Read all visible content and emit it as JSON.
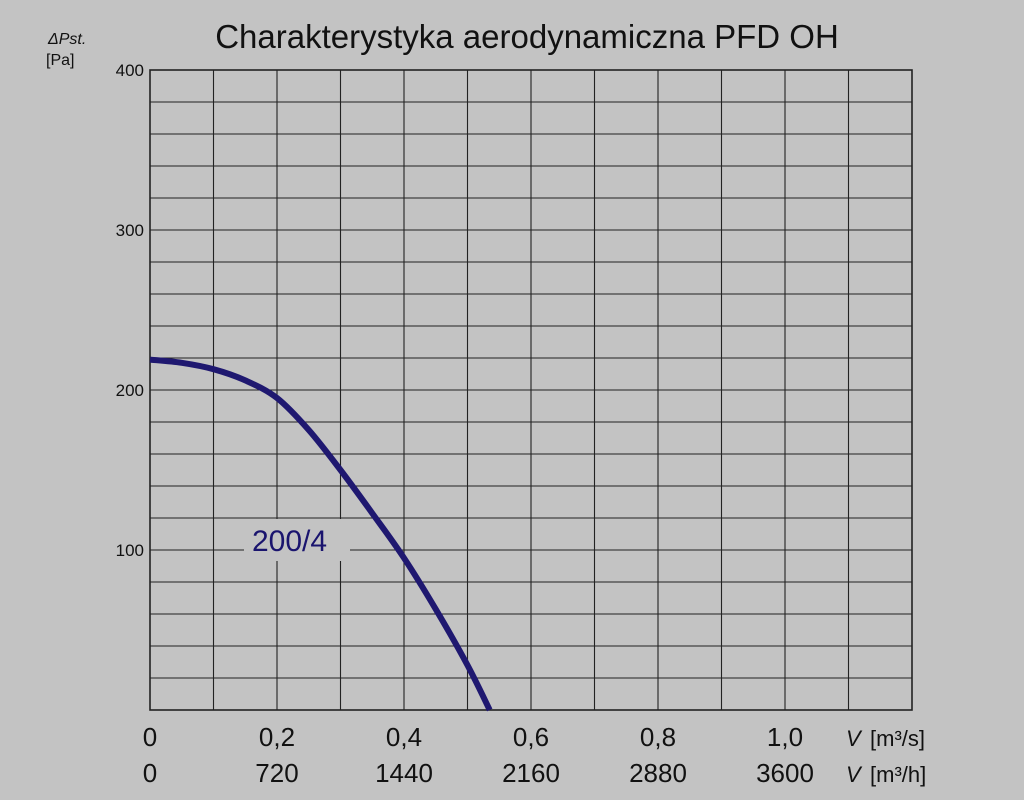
{
  "chart_data": {
    "type": "line",
    "title": "Charakterystyka aerodynamiczna PFD OH",
    "ylabel": {
      "symbol": "ΔPst.",
      "unit": "[Pa]"
    },
    "ylim": [
      0,
      400
    ],
    "yticks": [
      "100",
      "200",
      "300",
      "400"
    ],
    "xlim": [
      0,
      1.2
    ],
    "xticks_m3s": [
      "0",
      "0,2",
      "0,4",
      "0,6",
      "0,8",
      "1,0"
    ],
    "xticks_m3h": [
      "0",
      "720",
      "1440",
      "2160",
      "2880",
      "3600"
    ],
    "xlabel_m3s": {
      "symbol": "V",
      "unit": "[m³/s]"
    },
    "xlabel_m3h": {
      "symbol": "V",
      "unit": "[m³/h]"
    },
    "grid": true,
    "series": [
      {
        "name": "200/4",
        "color": "#1f1870",
        "x": [
          0,
          0.05,
          0.1,
          0.15,
          0.2,
          0.25,
          0.3,
          0.35,
          0.4,
          0.45,
          0.5,
          0.535
        ],
        "y": [
          219,
          217,
          213,
          206,
          195,
          175,
          150,
          123,
          95,
          63,
          28,
          0
        ]
      }
    ]
  }
}
